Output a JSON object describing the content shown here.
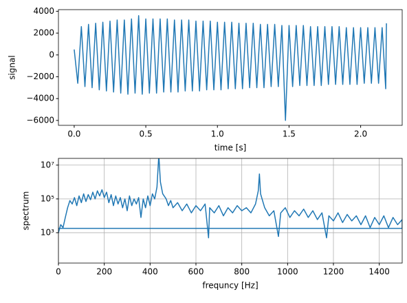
{
  "chart_data": [
    {
      "type": "line",
      "xlabel": "time [s]",
      "ylabel": "signal",
      "color": "#1f77b4",
      "grid": false,
      "yscale": "linear",
      "xlim": [
        -0.11,
        2.29
      ],
      "ylim": [
        -6450,
        4150
      ],
      "xticks": [
        {
          "value": 0,
          "label": "0.0"
        },
        0.5,
        {
          "value": 1,
          "label": "1.0"
        },
        1.5,
        {
          "value": 2,
          "label": "2.0"
        }
      ],
      "yticks": [
        {
          "value": -6000,
          "label": "−6000"
        },
        {
          "value": -4000,
          "label": "−4000"
        },
        {
          "value": -2000,
          "label": "−2000"
        },
        0,
        2000,
        4000
      ],
      "x": [
        0,
        0.025,
        0.05,
        0.075,
        0.1,
        0.125,
        0.15,
        0.175,
        0.2,
        0.225,
        0.25,
        0.275,
        0.3,
        0.325,
        0.35,
        0.375,
        0.4,
        0.425,
        0.45,
        0.475,
        0.5,
        0.525,
        0.55,
        0.575,
        0.6,
        0.625,
        0.65,
        0.675,
        0.7,
        0.725,
        0.75,
        0.775,
        0.8,
        0.825,
        0.85,
        0.875,
        0.9,
        0.925,
        0.95,
        0.975,
        1.0,
        1.025,
        1.05,
        1.075,
        1.1,
        1.125,
        1.15,
        1.175,
        1.2,
        1.225,
        1.25,
        1.275,
        1.3,
        1.325,
        1.35,
        1.375,
        1.4,
        1.425,
        1.45,
        1.475,
        1.5,
        1.525,
        1.55,
        1.575,
        1.6,
        1.625,
        1.65,
        1.675,
        1.7,
        1.725,
        1.75,
        1.775,
        1.8,
        1.825,
        1.85,
        1.875,
        1.9,
        1.925,
        1.95,
        1.975,
        2.0,
        2.025,
        2.05,
        2.075,
        2.1,
        2.125,
        2.15,
        2.175,
        2.18
      ],
      "values": [
        500,
        -2600,
        2600,
        -2900,
        2800,
        -3000,
        2900,
        -3200,
        3000,
        -3300,
        3100,
        -3400,
        3200,
        -3500,
        3200,
        -3600,
        3300,
        -3500,
        3600,
        -3600,
        3300,
        -3500,
        3300,
        -3500,
        3300,
        -3400,
        3300,
        -3400,
        3200,
        -3400,
        3200,
        -3300,
        3200,
        -3300,
        3100,
        -3300,
        3100,
        -3200,
        3100,
        -3200,
        3000,
        -3200,
        3000,
        -3100,
        3000,
        -3100,
        2900,
        -3100,
        2900,
        -3000,
        2900,
        -3000,
        2800,
        -3000,
        2800,
        -2900,
        2800,
        -2900,
        2700,
        -6000,
        2700,
        -2900,
        2700,
        -2800,
        2700,
        -2800,
        2600,
        -2800,
        2600,
        -2800,
        2600,
        -2700,
        2600,
        -2700,
        2600,
        -2700,
        2500,
        -2700,
        2500,
        -2700,
        2500,
        -2600,
        2500,
        -2600,
        2500,
        -2600,
        2500,
        -3100,
        2900
      ]
    },
    {
      "type": "line",
      "xlabel": "frequncy [Hz]",
      "ylabel": "spectrum",
      "color": "#1f77b4",
      "grid": true,
      "yscale": "log",
      "xlim": [
        0,
        1500
      ],
      "ylim": [
        16,
        25000000
      ],
      "xticks": [
        0,
        200,
        400,
        600,
        800,
        1000,
        1200,
        1400
      ],
      "yticks": [
        {
          "value": 1000,
          "label": "10³"
        },
        {
          "value": 100000,
          "label": "10⁵"
        },
        {
          "value": 10000000,
          "label": "10⁷"
        }
      ],
      "x": [
        0,
        10,
        20,
        30,
        40,
        50,
        60,
        70,
        80,
        90,
        100,
        110,
        120,
        130,
        140,
        150,
        160,
        170,
        180,
        190,
        200,
        210,
        220,
        230,
        240,
        250,
        260,
        270,
        280,
        290,
        300,
        310,
        320,
        330,
        340,
        350,
        360,
        370,
        380,
        390,
        400,
        410,
        420,
        430,
        438,
        445,
        455,
        470,
        480,
        490,
        500,
        520,
        540,
        560,
        580,
        600,
        620,
        640,
        655,
        660,
        680,
        700,
        720,
        740,
        760,
        780,
        800,
        820,
        840,
        860,
        872,
        877,
        882,
        900,
        920,
        940,
        960,
        970,
        990,
        1010,
        1030,
        1050,
        1070,
        1090,
        1110,
        1130,
        1150,
        1170,
        1180,
        1200,
        1220,
        1240,
        1260,
        1280,
        1300,
        1320,
        1340,
        1360,
        1380,
        1400,
        1420,
        1440,
        1460,
        1480,
        1500,
        1500,
        0
      ],
      "values": [
        1000,
        3000,
        2000,
        8000,
        30000,
        80000,
        50000,
        120000,
        40000,
        150000,
        60000,
        200000,
        70000,
        180000,
        90000,
        250000,
        100000,
        300000,
        150000,
        350000,
        120000,
        250000,
        60000,
        180000,
        40000,
        150000,
        50000,
        120000,
        30000,
        100000,
        20000,
        150000,
        40000,
        100000,
        50000,
        120000,
        8000,
        100000,
        30000,
        150000,
        40000,
        200000,
        100000,
        500000,
        40000000,
        1000000,
        200000,
        100000,
        40000,
        80000,
        30000,
        60000,
        20000,
        50000,
        15000,
        40000,
        20000,
        50000,
        500,
        30000,
        15000,
        40000,
        10000,
        30000,
        15000,
        40000,
        20000,
        30000,
        15000,
        50000,
        300000,
        3000000,
        200000,
        30000,
        10000,
        20000,
        600,
        15000,
        30000,
        8000,
        20000,
        10000,
        25000,
        8000,
        20000,
        6000,
        15000,
        500,
        10000,
        5000,
        15000,
        4000,
        12000,
        5000,
        10000,
        3000,
        10000,
        2000,
        8000,
        3000,
        10000,
        2000,
        8000,
        3000,
        6000,
        1800,
        1800
      ]
    }
  ]
}
